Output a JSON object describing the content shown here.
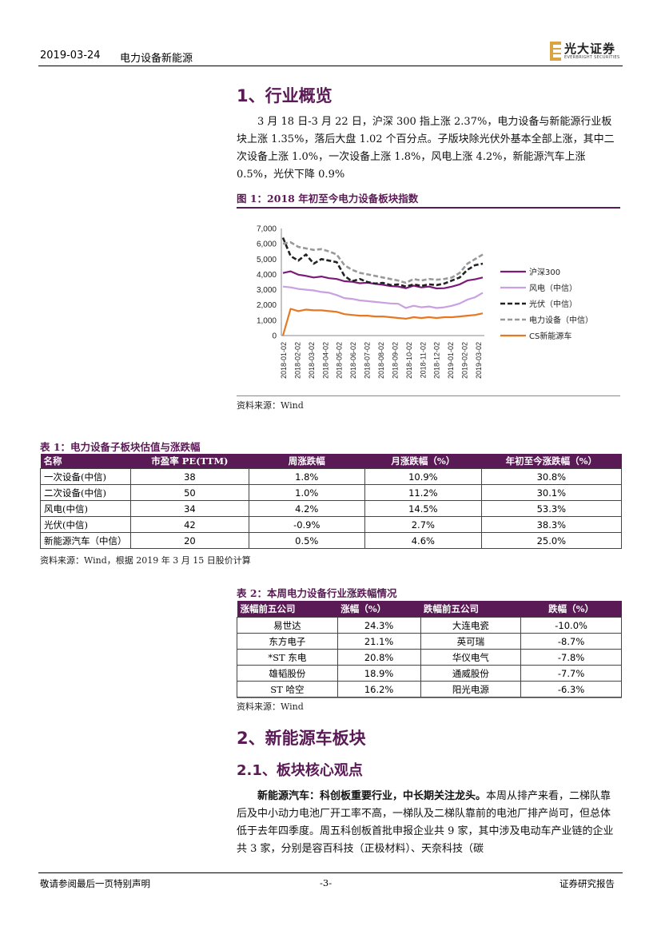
{
  "header": {
    "date": "2019-03-24",
    "sector": "电力设备新能源",
    "logo_cn": "光大证券",
    "logo_en": "EVERBRIGHT SECURITIES"
  },
  "section1": {
    "title": "1、行业概览",
    "paragraph": "3 月 18 日-3 月 22 日，沪深 300 指上涨 2.37%，电力设备与新能源行业板块上涨 1.35%，落后大盘 1.02 个百分点。子版块除光伏外基本全部上涨，其中二次设备上涨 1.0%，一次设备上涨 1.8%，风电上涨 4.2%，新能源汽车上涨 0.5%，光伏下降 0.9%"
  },
  "figure1": {
    "title": "图 1：2018 年初至今电力设备板块指数",
    "source": "资料来源：Wind"
  },
  "chart_data": {
    "type": "line",
    "ylim": [
      0,
      7000
    ],
    "yticks": [
      "0",
      "1,000",
      "2,000",
      "3,000",
      "4,000",
      "5,000",
      "6,000",
      "7,000"
    ],
    "xticks": [
      "2018-01-02",
      "2018-02-02",
      "2018-03-02",
      "2018-04-02",
      "2018-05-02",
      "2018-06-02",
      "2018-07-02",
      "2018-08-02",
      "2018-09-02",
      "2018-10-02",
      "2018-11-02",
      "2018-12-02",
      "2019-01-02",
      "2019-02-02",
      "2019-03-02"
    ],
    "legend_position": "right",
    "series": [
      {
        "name": "沪深300",
        "color": "#7b1a78",
        "style": "solid",
        "values": [
          4090,
          4200,
          3980,
          3900,
          3800,
          3860,
          3750,
          3700,
          3550,
          3520,
          3420,
          3460,
          3380,
          3320,
          3240,
          3200,
          3100,
          3260,
          3150,
          3200,
          3080,
          3100,
          3200,
          3350,
          3600,
          3680,
          3800
        ]
      },
      {
        "name": "风电（中信）",
        "color": "#c9a0e0",
        "style": "solid",
        "values": [
          3200,
          3150,
          3050,
          3000,
          2950,
          2850,
          2800,
          2650,
          2450,
          2400,
          2300,
          2250,
          2200,
          2150,
          2100,
          2080,
          1800,
          1950,
          1850,
          1900,
          1800,
          1850,
          1950,
          2100,
          2350,
          2500,
          2800
        ]
      },
      {
        "name": "光伏（中信）",
        "color": "#222222",
        "style": "dash",
        "values": [
          6400,
          5200,
          4900,
          5300,
          4700,
          5000,
          4900,
          4800,
          3900,
          3550,
          3700,
          3500,
          3400,
          3450,
          3300,
          3350,
          3200,
          3350,
          3250,
          3350,
          3300,
          3400,
          3600,
          3800,
          4300,
          4600,
          4700
        ]
      },
      {
        "name": "电力设备（中信）",
        "color": "#999999",
        "style": "dash",
        "values": [
          6000,
          6100,
          5800,
          5700,
          5600,
          5650,
          5500,
          5300,
          4600,
          4300,
          4100,
          4000,
          3900,
          3800,
          3700,
          3600,
          3450,
          3700,
          3600,
          3700,
          3650,
          3700,
          3800,
          4100,
          4700,
          5000,
          5300
        ]
      },
      {
        "name": "CS新能源车",
        "color": "#e87722",
        "style": "solid",
        "values": [
          0,
          1750,
          1600,
          1700,
          1650,
          1650,
          1600,
          1550,
          1400,
          1350,
          1300,
          1300,
          1250,
          1250,
          1200,
          1150,
          1100,
          1200,
          1150,
          1200,
          1150,
          1200,
          1200,
          1250,
          1300,
          1350,
          1450
        ]
      }
    ]
  },
  "table1": {
    "title": "表 1：电力设备子板块估值与涨跌幅",
    "headers": [
      "名称",
      "市盈率 PE(TTM)",
      "周涨跌幅",
      "月涨跌幅（%）",
      "年初至今涨跌幅（%）"
    ],
    "rows": [
      [
        "一次设备(中信)",
        "38",
        "1.8%",
        "10.9%",
        "30.8%"
      ],
      [
        "二次设备(中信)",
        "50",
        "1.0%",
        "11.2%",
        "30.1%"
      ],
      [
        "风电(中信)",
        "34",
        "4.2%",
        "14.5%",
        "53.3%"
      ],
      [
        "光伏(中信)",
        "42",
        "-0.9%",
        "2.7%",
        "38.3%"
      ],
      [
        "新能源汽车（中信）",
        "20",
        "0.5%",
        "4.6%",
        "25.0%"
      ]
    ],
    "source": "资料来源：Wind，根据 2019 年 3 月 15 日股价计算"
  },
  "table2": {
    "title": "表 2：本周电力设备行业涨跌幅情况",
    "headers": [
      "涨幅前五公司",
      "涨幅（%）",
      "跌幅前五公司",
      "跌幅（%）"
    ],
    "rows": [
      [
        "易世达",
        "24.3%",
        "大连电瓷",
        "-10.0%"
      ],
      [
        "东方电子",
        "21.1%",
        "英可瑞",
        "-8.7%"
      ],
      [
        "*ST 东电",
        "20.8%",
        "华仪电气",
        "-7.8%"
      ],
      [
        "雄韬股份",
        "18.9%",
        "通威股份",
        "-7.7%"
      ],
      [
        "ST 哈空",
        "16.2%",
        "阳光电源",
        "-6.3%"
      ]
    ],
    "source": "资料来源：Wind"
  },
  "section2": {
    "title": "2、新能源车板块",
    "sub_title": "2.1、板块核心观点",
    "lead": "新能源汽车：科创板重要行业，中长期关注龙头。",
    "paragraph": "本周从排产来看，二梯队靠后及中小动力电池厂开工率不高，一梯队及二梯队靠前的电池厂排产尚可，但总体低于去年四季度。周五科创板首批申报企业共 9 家，其中涉及电动车产业链的企业共 3 家，分别是容百科技（正极材料）、天奈科技（碳"
  },
  "footer": {
    "left": "敬请参阅最后一页特别声明",
    "page": "-3-",
    "right": "证券研究报告"
  }
}
